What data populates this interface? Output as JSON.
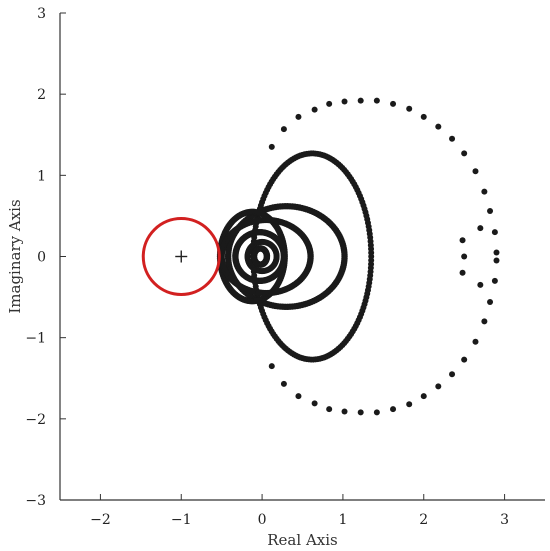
{
  "chart_data": {
    "type": "scatter",
    "xlabel": "Real Axis",
    "ylabel": "Imaginary Axis",
    "xlim": [
      -2.5,
      3.5
    ],
    "ylim": [
      -3,
      3
    ],
    "x_ticks": [
      -2,
      -1,
      0,
      1,
      2,
      3
    ],
    "y_ticks": [
      -3,
      -2,
      -1,
      0,
      1,
      2,
      3
    ],
    "x_tick_labels": [
      "−2",
      "−1",
      "0",
      "1",
      "2",
      "3"
    ],
    "y_tick_labels": [
      "−3",
      "−2",
      "−1",
      "0",
      "1",
      "2",
      "3"
    ],
    "grid": false,
    "colors": {
      "points": "#1a1a1a",
      "critical_circle": "#d22020",
      "axes": "#333333"
    },
    "critical_point": {
      "x": -1,
      "y": 0,
      "marker": "+"
    },
    "critical_circle": {
      "center": [
        -1,
        0
      ],
      "radius": 0.47
    },
    "series": [
      {
        "marker": "dot",
        "points": [
          [
            0.12,
            1.35
          ],
          [
            0.27,
            1.57
          ],
          [
            0.45,
            1.72
          ],
          [
            0.65,
            1.81
          ],
          [
            0.83,
            1.88
          ],
          [
            1.02,
            1.91
          ],
          [
            1.22,
            1.92
          ],
          [
            1.42,
            1.92
          ],
          [
            1.62,
            1.88
          ],
          [
            1.82,
            1.82
          ],
          [
            2.0,
            1.72
          ],
          [
            2.18,
            1.6
          ],
          [
            2.35,
            1.45
          ],
          [
            2.5,
            1.27
          ],
          [
            2.64,
            1.05
          ],
          [
            2.75,
            0.8
          ],
          [
            2.82,
            0.56
          ],
          [
            2.88,
            0.3
          ],
          [
            2.9,
            0.05
          ],
          [
            2.9,
            -0.05
          ],
          [
            2.88,
            -0.3
          ],
          [
            2.82,
            -0.56
          ],
          [
            2.75,
            -0.8
          ],
          [
            2.64,
            -1.05
          ],
          [
            2.5,
            -1.27
          ],
          [
            2.35,
            -1.45
          ],
          [
            2.18,
            -1.6
          ],
          [
            2.0,
            -1.72
          ],
          [
            1.82,
            -1.82
          ],
          [
            1.62,
            -1.88
          ],
          [
            1.42,
            -1.92
          ],
          [
            1.22,
            -1.92
          ],
          [
            1.02,
            -1.91
          ],
          [
            0.83,
            -1.88
          ],
          [
            0.65,
            -1.81
          ],
          [
            0.45,
            -1.72
          ],
          [
            0.27,
            -1.57
          ],
          [
            0.12,
            -1.35
          ],
          [
            2.48,
            0.2
          ],
          [
            2.5,
            0.0
          ],
          [
            2.48,
            -0.2
          ],
          [
            2.7,
            0.35
          ],
          [
            2.7,
            -0.35
          ]
        ]
      }
    ]
  }
}
